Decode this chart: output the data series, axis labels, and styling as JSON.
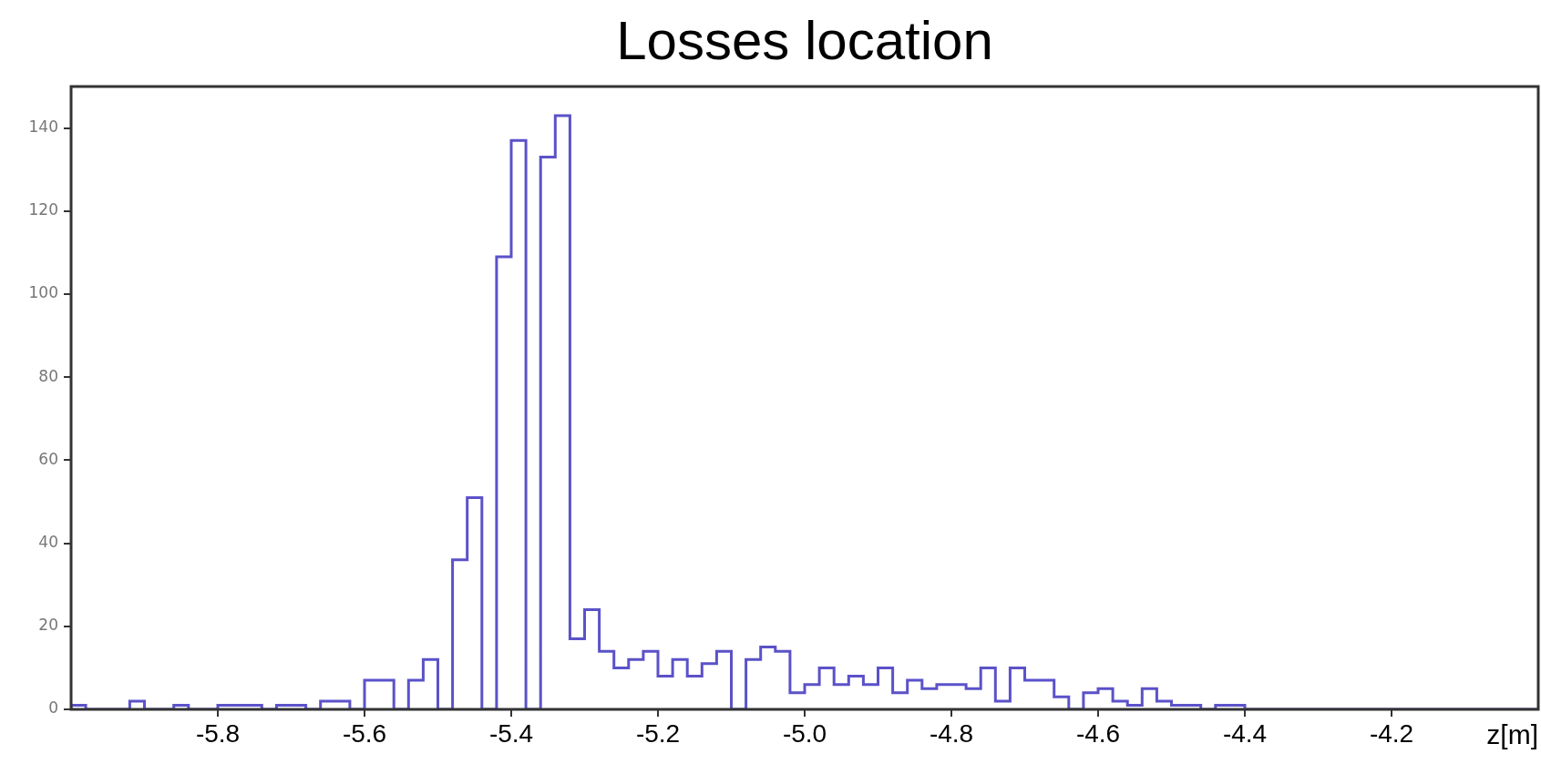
{
  "chart_data": {
    "type": "histogram",
    "title": "Losses location",
    "xlabel": "z[m]",
    "color": "#5b52c9",
    "bins": [
      -6,
      -5.98,
      -5.96,
      -5.94,
      -5.92,
      -5.9,
      -5.88,
      -5.86,
      -5.84,
      -5.82,
      -5.8,
      -5.78,
      -5.76,
      -5.74,
      -5.72,
      -5.7,
      -5.68,
      -5.66,
      -5.64,
      -5.62,
      -5.6,
      -5.58,
      -5.56,
      -5.54,
      -5.52,
      -5.5,
      -5.48,
      -5.46,
      -5.44,
      -5.42,
      -5.4,
      -5.38,
      -5.36,
      -5.34,
      -5.32,
      -5.3,
      -5.28,
      -5.26,
      -5.24,
      -5.22,
      -5.2,
      -5.18,
      -5.16,
      -5.14,
      -5.12,
      -5.1,
      -5.08,
      -5.06,
      -5.04,
      -5.02,
      -5,
      -4.98,
      -4.96,
      -4.94,
      -4.92,
      -4.9,
      -4.88,
      -4.86,
      -4.84,
      -4.82,
      -4.8,
      -4.78,
      -4.76,
      -4.74,
      -4.72,
      -4.7,
      -4.68,
      -4.66,
      -4.64,
      -4.62,
      -4.6,
      -4.58,
      -4.56,
      -4.54,
      -4.52,
      -4.5,
      -4.48,
      -4.46,
      -4.44,
      -4.42,
      -4.4,
      -4.38,
      -4.36,
      -4.34,
      -4.32,
      -4.3,
      -4.28,
      -4.26,
      -4.24,
      -4.22,
      -4.2,
      -4.18,
      -4.16,
      -4.14,
      -4.12,
      -4.1,
      -4.08,
      -4.06,
      -4.04,
      -4.02,
      -4
    ],
    "values": [
      1,
      0,
      0,
      0,
      2,
      0,
      0,
      1,
      0,
      0,
      1,
      1,
      1,
      0,
      1,
      1,
      0,
      2,
      2,
      0,
      7,
      7,
      0,
      7,
      12,
      0,
      36,
      51,
      0,
      109,
      137,
      0,
      133,
      143,
      17,
      24,
      14,
      10,
      12,
      14,
      8,
      12,
      8,
      11,
      14,
      0,
      12,
      15,
      14,
      4,
      6,
      10,
      6,
      8,
      6,
      10,
      4,
      7,
      5,
      6,
      6,
      5,
      10,
      2,
      10,
      7,
      7,
      3,
      0,
      4,
      5,
      2,
      1,
      5,
      2,
      1,
      1,
      0,
      1,
      1,
      0,
      0,
      0,
      0,
      0,
      0,
      0,
      0,
      0,
      0,
      0,
      0,
      0,
      0,
      0,
      0,
      0,
      0,
      0,
      0
    ],
    "xlim": [
      -6,
      -4
    ],
    "ylim": [
      0,
      150
    ],
    "xticks": [
      {
        "value": -5.8,
        "label": "-5.8"
      },
      {
        "value": -5.6,
        "label": "-5.6"
      },
      {
        "value": -5.4,
        "label": "-5.4"
      },
      {
        "value": -5.2,
        "label": "-5.2"
      },
      {
        "value": -5,
        "label": "-5.0"
      },
      {
        "value": -4.8,
        "label": "-4.8"
      },
      {
        "value": -4.6,
        "label": "-4.6"
      },
      {
        "value": -4.4,
        "label": "-4.4"
      },
      {
        "value": -4.2,
        "label": "-4.2"
      }
    ],
    "yticks": [
      0,
      20,
      40,
      60,
      80,
      100,
      120,
      140
    ],
    "grid": false,
    "legend": false
  }
}
